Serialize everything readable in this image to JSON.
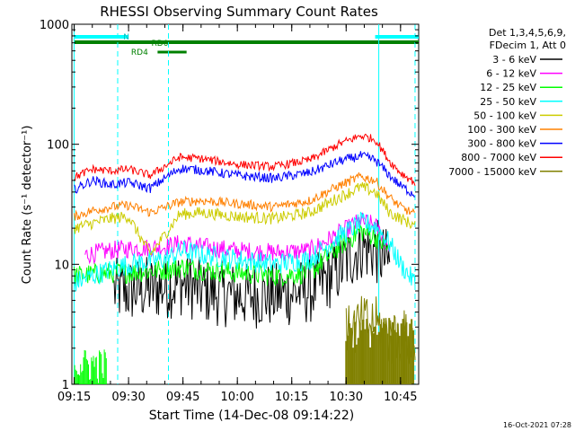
{
  "title": "RHESSI Observing Summary Count Rates",
  "footer_timestamp": "16-Oct-2021 07:28",
  "chart_data": {
    "type": "line",
    "title": "RHESSI Observing Summary Count Rates",
    "xlabel": "Start Time (14-Dec-08 09:14:22)",
    "ylabel": "Count Rate (s⁻¹ detector⁻¹)",
    "y_scale": "log",
    "ylim": [
      1,
      1000
    ],
    "xlim": [
      "09:15",
      "10:50"
    ],
    "x_ticks": [
      "09:15",
      "09:30",
      "09:45",
      "10:00",
      "10:15",
      "10:30",
      "10:45"
    ],
    "y_ticks": [
      "1",
      "10",
      "100",
      "1000"
    ],
    "legend_header": [
      "Det 1,3,4,5,6,9,",
      "FDecim 1, Att 0"
    ],
    "legend_position": "right",
    "state_bars": [
      {
        "label": "N",
        "color": "#00ffff",
        "segments": [
          [
            "09:15",
            "09:30"
          ],
          [
            "10:38",
            "10:50"
          ]
        ]
      },
      {
        "label": "RD0",
        "color": "#008000",
        "segments": [
          [
            "09:15",
            "10:50"
          ]
        ]
      },
      {
        "label": "RD4",
        "color": "#008000",
        "segments": [
          [
            "09:38",
            "09:46"
          ]
        ]
      }
    ],
    "vertical_markers": [
      {
        "time": "09:15",
        "style": "solid",
        "color": "#00ffff"
      },
      {
        "time": "09:27",
        "style": "dashed",
        "color": "#00ffff"
      },
      {
        "time": "09:41",
        "style": "dashed",
        "color": "#00ffff"
      },
      {
        "time": "10:39",
        "style": "solid",
        "color": "#00ffff"
      },
      {
        "time": "10:49",
        "style": "dashed",
        "color": "#00ffff"
      }
    ],
    "series": [
      {
        "name": "3 - 6 keV",
        "color": "#000000",
        "x": [
          "09:26",
          "09:30",
          "09:40",
          "09:45",
          "09:50",
          "10:00",
          "10:10",
          "10:20",
          "10:28",
          "10:34",
          "10:38",
          "10:42"
        ],
        "y": [
          6,
          6,
          6.5,
          7,
          6,
          5.5,
          5.5,
          6,
          9,
          14,
          13,
          10
        ]
      },
      {
        "name": "6 - 12 keV",
        "color": "#ff00ff",
        "x": [
          "09:18",
          "09:25",
          "09:30",
          "09:40",
          "09:45",
          "09:50",
          "10:00",
          "10:10",
          "10:20",
          "10:28",
          "10:34",
          "10:38",
          "10:42"
        ],
        "y": [
          12,
          13,
          13.5,
          14,
          15,
          14,
          13,
          12.5,
          13,
          18,
          23,
          21,
          14
        ]
      },
      {
        "name": "12 - 25 keV",
        "color": "#00ff00",
        "x": [
          "09:15",
          "09:25",
          "09:30",
          "09:40",
          "09:45",
          "09:50",
          "10:00",
          "10:10",
          "10:20",
          "10:28",
          "10:34",
          "10:38",
          "10:42"
        ],
        "y": [
          8,
          8.5,
          8.5,
          9,
          9.5,
          9,
          8.5,
          8,
          8.5,
          14,
          19,
          17,
          13
        ]
      },
      {
        "name": "25 - 50 keV",
        "color": "#00ffff",
        "x": [
          "09:15",
          "09:20",
          "09:25",
          "09:30",
          "09:40",
          "09:45",
          "09:50",
          "10:00",
          "10:10",
          "10:20",
          "10:28",
          "10:34",
          "10:38",
          "10:42",
          "10:45",
          "10:49"
        ],
        "y": [
          7,
          8,
          9,
          10,
          11,
          13,
          12,
          11,
          10,
          11,
          17,
          22,
          21,
          15,
          10,
          7
        ]
      },
      {
        "name": "50 - 100 keV",
        "color": "#cccc00",
        "x": [
          "09:15",
          "09:20",
          "09:25",
          "09:30",
          "09:36",
          "09:44",
          "09:50",
          "10:00",
          "10:10",
          "10:20",
          "10:28",
          "10:34",
          "10:38",
          "10:42",
          "10:45",
          "10:49"
        ],
        "y": [
          20,
          22,
          24,
          25,
          12,
          26,
          27,
          25,
          24,
          27,
          36,
          44,
          40,
          27,
          24,
          21
        ]
      },
      {
        "name": "100 - 300 keV",
        "color": "#ff8000",
        "x": [
          "09:15",
          "09:20",
          "09:25",
          "09:30",
          "09:36",
          "09:44",
          "09:50",
          "10:00",
          "10:10",
          "10:20",
          "10:28",
          "10:34",
          "10:38",
          "10:42",
          "10:45",
          "10:49"
        ],
        "y": [
          25,
          28,
          30,
          31,
          27,
          33,
          34,
          32,
          30,
          34,
          45,
          54,
          50,
          36,
          30,
          26
        ]
      },
      {
        "name": "300 - 800 keV",
        "color": "#0000ff",
        "x": [
          "09:15",
          "09:20",
          "09:25",
          "09:30",
          "09:36",
          "09:44",
          "09:50",
          "10:00",
          "10:10",
          "10:20",
          "10:28",
          "10:34",
          "10:38",
          "10:42",
          "10:45",
          "10:49"
        ],
        "y": [
          42,
          50,
          46,
          48,
          43,
          63,
          61,
          55,
          52,
          58,
          72,
          80,
          74,
          55,
          45,
          38
        ]
      },
      {
        "name": "800 - 7000 keV",
        "color": "#ff0000",
        "x": [
          "09:15",
          "09:20",
          "09:25",
          "09:30",
          "09:36",
          "09:44",
          "09:50",
          "10:00",
          "10:10",
          "10:20",
          "10:28",
          "10:34",
          "10:38",
          "10:42",
          "10:45",
          "10:49"
        ],
        "y": [
          53,
          62,
          60,
          62,
          55,
          78,
          76,
          68,
          65,
          74,
          100,
          118,
          110,
          72,
          58,
          48
        ]
      },
      {
        "name": "7000 - 15000 keV",
        "color": "#808000",
        "x": [
          "10:30",
          "10:33",
          "10:36",
          "10:39",
          "10:41",
          "10:43",
          "10:45",
          "10:47",
          "10:49"
        ],
        "y": [
          2.5,
          3,
          3.2,
          3,
          2.6,
          2.4,
          2.5,
          2.3,
          2.0
        ]
      }
    ]
  }
}
